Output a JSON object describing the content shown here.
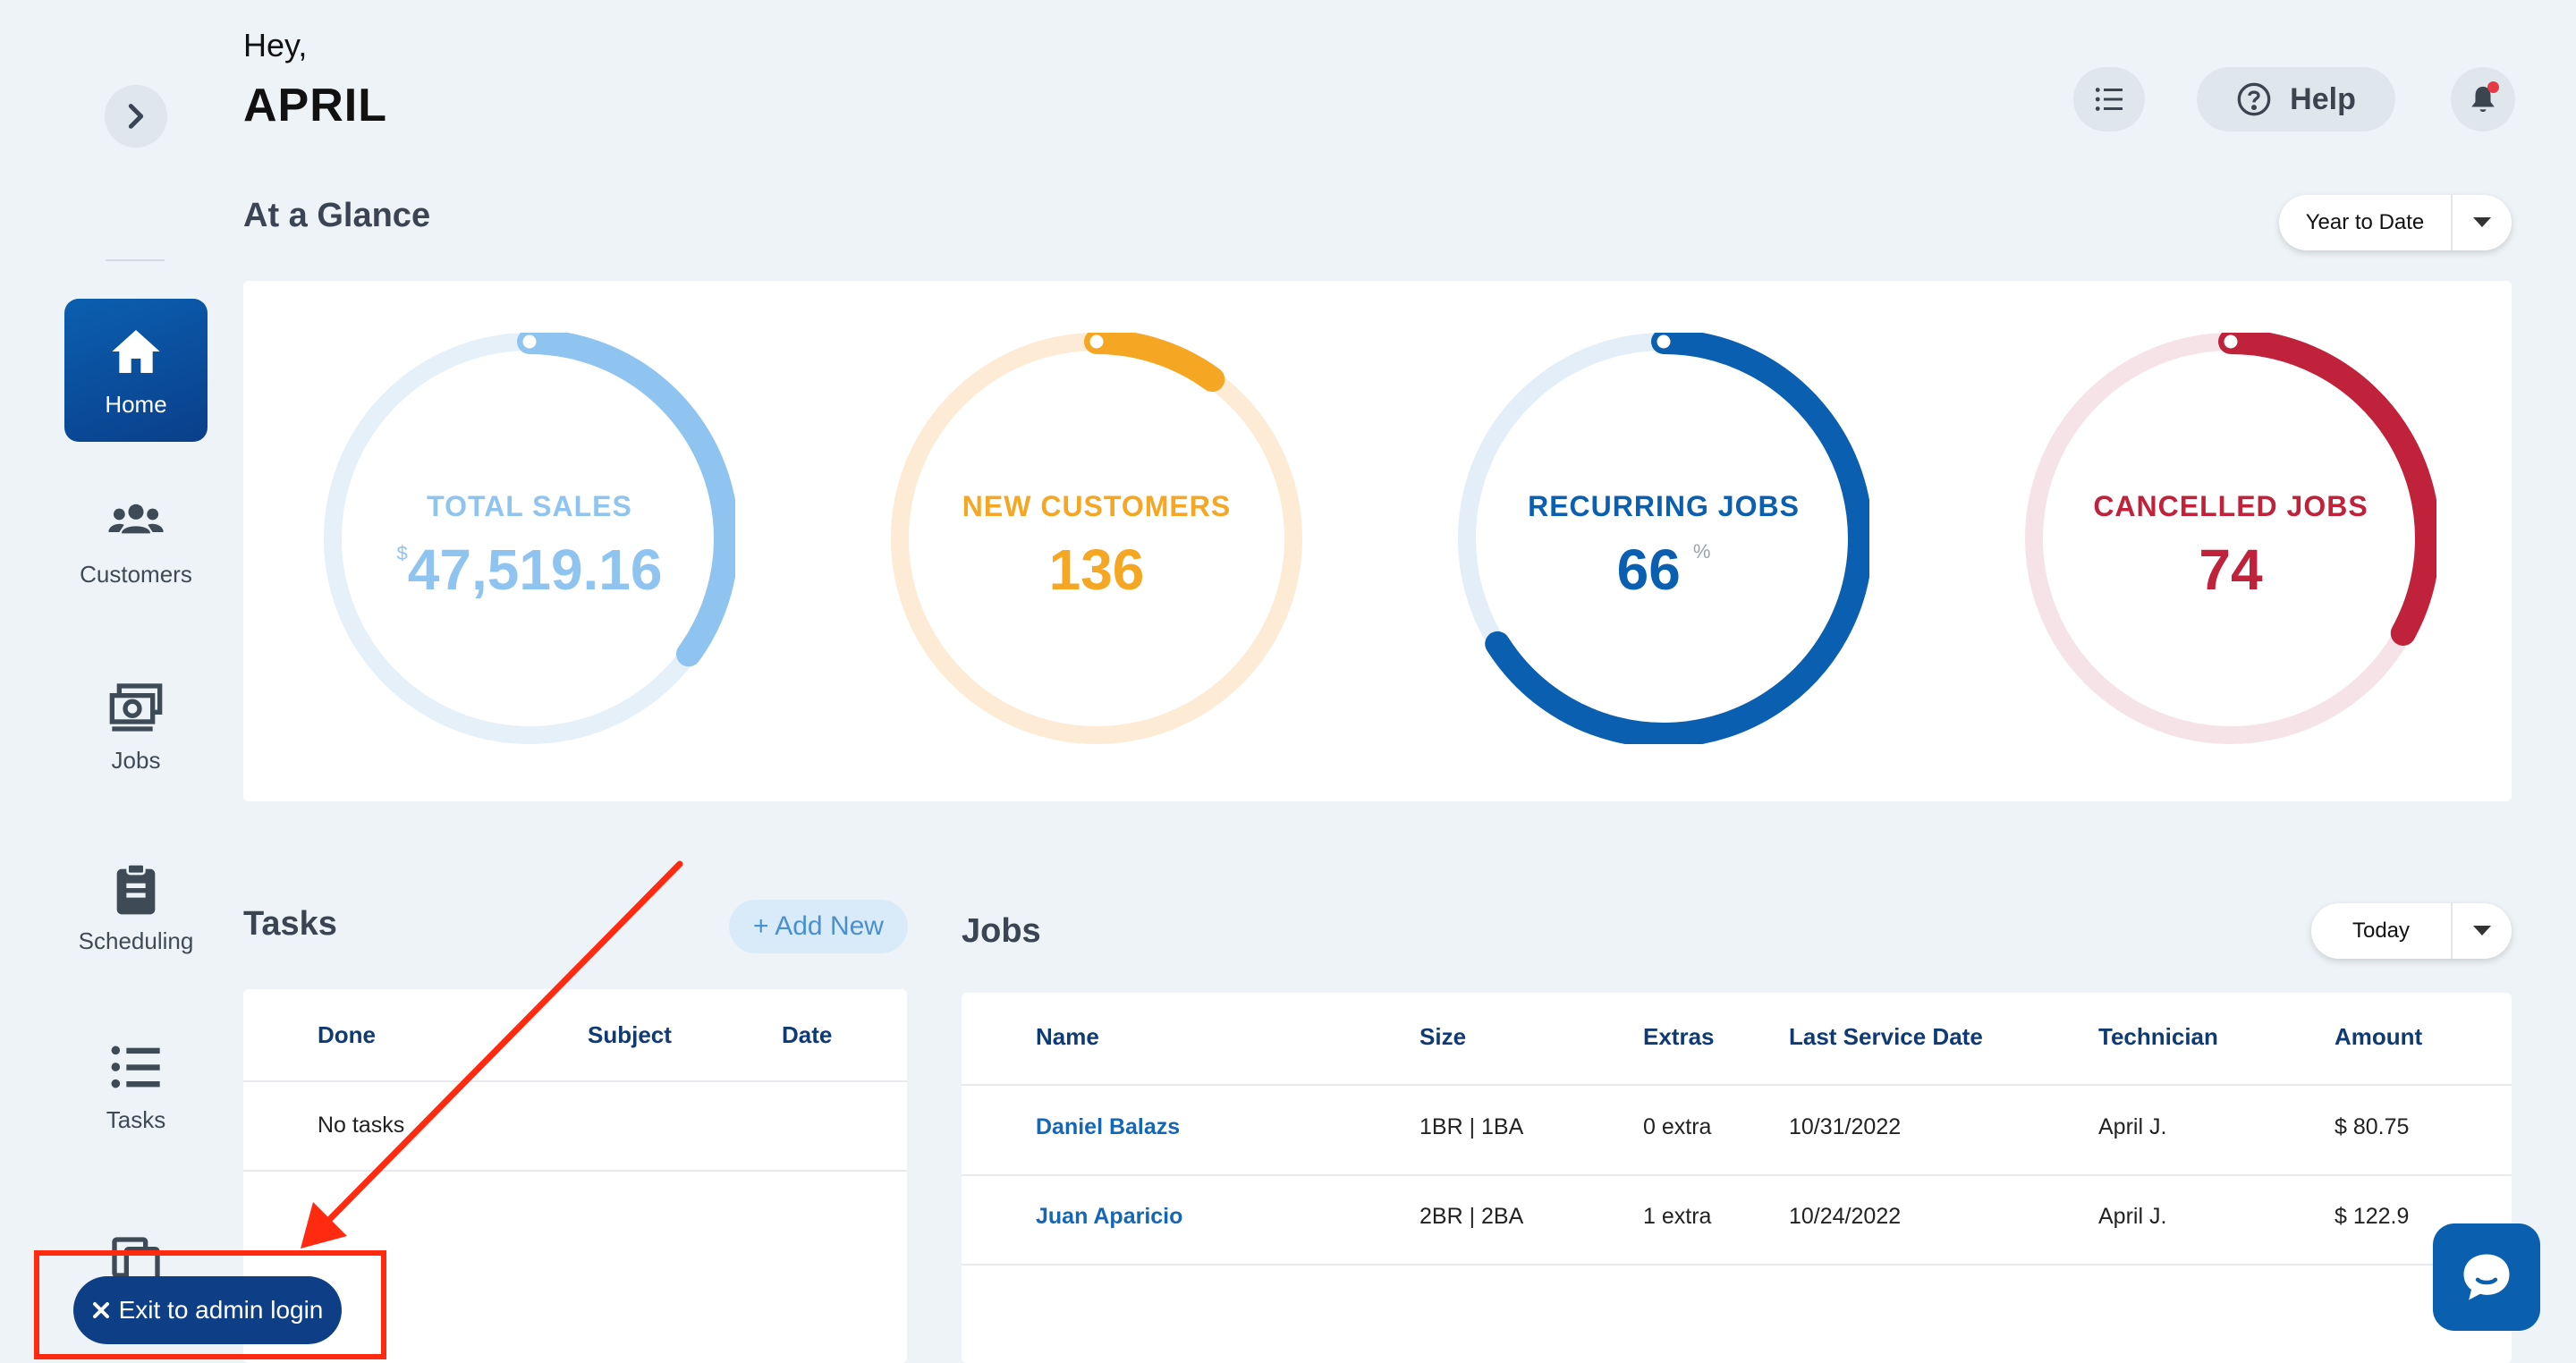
{
  "header": {
    "greeting": "Hey,",
    "username": "APRIL",
    "help_label": "Help"
  },
  "sidebar": {
    "items": [
      {
        "label": "Home",
        "icon": "home-icon",
        "active": true
      },
      {
        "label": "Customers",
        "icon": "users-icon"
      },
      {
        "label": "Jobs",
        "icon": "money-icon"
      },
      {
        "label": "Scheduling",
        "icon": "clipboard-icon"
      },
      {
        "label": "Tasks",
        "icon": "list-icon"
      },
      {
        "label": "",
        "icon": "copy-icon"
      }
    ]
  },
  "glance": {
    "title": "At a Glance",
    "range_label": "Year to Date",
    "stats": [
      {
        "label": "TOTAL SALES",
        "prefix": "$",
        "value": "47,519.16",
        "suffix": "",
        "color": "#8fc4f0",
        "track": "#e6f0f9",
        "fraction": 0.35
      },
      {
        "label": "NEW CUSTOMERS",
        "prefix": "",
        "value": "136",
        "suffix": "",
        "color": "#f5a623",
        "track": "#fdebd6",
        "fraction": 0.1
      },
      {
        "label": "RECURRING JOBS",
        "prefix": "",
        "value": "66",
        "suffix": "%",
        "color": "#0b5fb0",
        "track": "#e3eef9",
        "fraction": 0.66
      },
      {
        "label": "CANCELLED JOBS",
        "prefix": "",
        "value": "74",
        "suffix": "",
        "color": "#c0223b",
        "track": "#f6e3e7",
        "fraction": 0.33
      }
    ]
  },
  "tasks": {
    "title": "Tasks",
    "add_label": "+ Add New",
    "columns": [
      "Done",
      "Subject",
      "Date"
    ],
    "empty_text": "No tasks"
  },
  "jobs": {
    "title": "Jobs",
    "range_label": "Today",
    "columns": [
      "Name",
      "Size",
      "Extras",
      "Last Service Date",
      "Technician",
      "Amount"
    ],
    "rows": [
      [
        "Daniel Balazs",
        "1BR | 1BA",
        "0 extra",
        "10/31/2022",
        "April J.",
        "$ 80.75"
      ],
      [
        "Juan Aparicio",
        "2BR | 2BA",
        "1 extra",
        "10/24/2022",
        "April J.",
        "$ 122.9"
      ]
    ]
  },
  "exit_label": "Exit to admin login"
}
